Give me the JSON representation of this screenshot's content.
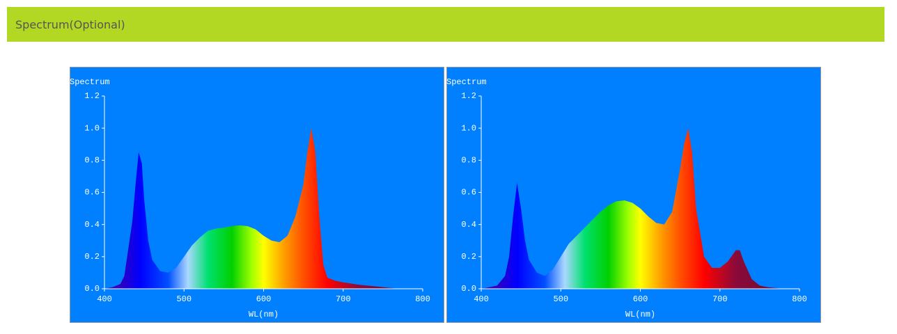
{
  "header": {
    "title": "Spectrum(Optional)"
  },
  "chart_data": [
    {
      "type": "area",
      "title": "Spectrum",
      "x_label": "WL(nm)",
      "x": [
        400,
        410,
        420,
        425,
        430,
        435,
        440,
        443,
        447,
        450,
        455,
        460,
        470,
        480,
        490,
        500,
        510,
        520,
        530,
        540,
        550,
        560,
        570,
        580,
        590,
        600,
        610,
        620,
        630,
        640,
        650,
        655,
        660,
        665,
        670,
        675,
        680,
        690,
        700,
        720,
        740,
        760,
        770
      ],
      "values": [
        0,
        0.01,
        0.03,
        0.08,
        0.25,
        0.42,
        0.7,
        0.85,
        0.78,
        0.55,
        0.3,
        0.18,
        0.11,
        0.1,
        0.13,
        0.2,
        0.27,
        0.32,
        0.36,
        0.375,
        0.38,
        0.39,
        0.395,
        0.39,
        0.37,
        0.33,
        0.3,
        0.29,
        0.33,
        0.45,
        0.65,
        0.85,
        1.0,
        0.85,
        0.45,
        0.15,
        0.07,
        0.05,
        0.04,
        0.025,
        0.015,
        0.005,
        0
      ],
      "xlim": [
        400,
        800
      ],
      "xticks": [
        400,
        500,
        600,
        700,
        800
      ],
      "ylim": [
        0,
        1.2
      ],
      "yticks": [
        {
          "value": 0,
          "label": "0.0"
        },
        0.2,
        0.4,
        0.6,
        0.8,
        {
          "value": 1,
          "label": "1.0"
        },
        1.2
      ]
    },
    {
      "type": "area",
      "title": "Spectrum",
      "x_label": "WL(nm)",
      "x": [
        400,
        410,
        420,
        430,
        435,
        440,
        445,
        450,
        455,
        460,
        470,
        480,
        490,
        500,
        510,
        520,
        530,
        540,
        550,
        560,
        570,
        580,
        590,
        600,
        610,
        620,
        630,
        640,
        650,
        655,
        660,
        665,
        670,
        680,
        690,
        700,
        710,
        720,
        725,
        730,
        740,
        750,
        760,
        780
      ],
      "values": [
        0,
        0.01,
        0.02,
        0.08,
        0.2,
        0.45,
        0.66,
        0.5,
        0.3,
        0.18,
        0.1,
        0.08,
        0.12,
        0.2,
        0.28,
        0.33,
        0.38,
        0.43,
        0.48,
        0.52,
        0.545,
        0.55,
        0.535,
        0.5,
        0.45,
        0.41,
        0.4,
        0.48,
        0.75,
        0.9,
        1.0,
        0.85,
        0.5,
        0.2,
        0.13,
        0.13,
        0.17,
        0.24,
        0.24,
        0.17,
        0.06,
        0.02,
        0.01,
        0
      ],
      "xlim": [
        400,
        800
      ],
      "xticks": [
        400,
        500,
        600,
        700,
        800
      ],
      "ylim": [
        0,
        1.2
      ],
      "yticks": [
        {
          "value": 0,
          "label": "0.0"
        },
        0.2,
        0.4,
        0.6,
        0.8,
        {
          "value": 1,
          "label": "1.0"
        },
        1.2
      ]
    }
  ]
}
